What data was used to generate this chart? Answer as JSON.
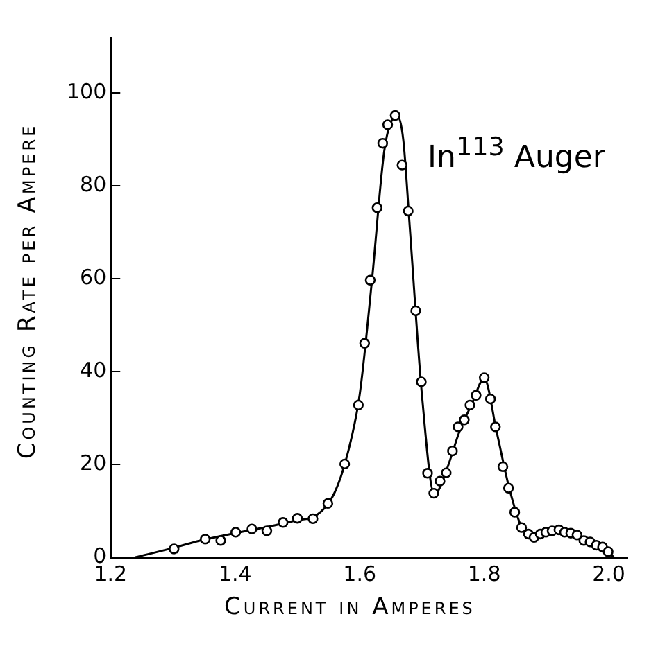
{
  "chart_data": {
    "type": "scatter",
    "xlabel": "Current in Amperes",
    "ylabel": "Counting Rate per Ampere",
    "annotations": [
      "In$^{113}$ Auger"
    ],
    "xlim": [
      1.2,
      2.03
    ],
    "ylim": [
      0,
      112
    ],
    "xticks": [
      {
        "value": 1.2,
        "label": "1.2"
      },
      {
        "value": 1.4,
        "label": "1.4"
      },
      {
        "value": 1.6,
        "label": "1.6"
      },
      {
        "value": 1.8,
        "label": "1.8"
      },
      {
        "value": 2,
        "label": "2.0"
      }
    ],
    "yticks": [
      0,
      20,
      40,
      60,
      80,
      100
    ],
    "grid": false,
    "legend": false,
    "series": [
      {
        "marker": "circle",
        "color": "#000000",
        "x": [
          1.302,
          1.352,
          1.377,
          1.401,
          1.427,
          1.451,
          1.477,
          1.5,
          1.525,
          1.549,
          1.576,
          1.598,
          1.608,
          1.617,
          1.628,
          1.637,
          1.645,
          1.657,
          1.668,
          1.678,
          1.69,
          1.699,
          1.709,
          1.719,
          1.729,
          1.739,
          1.749,
          1.758,
          1.768,
          1.777,
          1.787,
          1.8,
          1.81,
          1.818,
          1.83,
          1.839,
          1.849,
          1.86,
          1.871,
          1.88,
          1.89,
          1.899,
          1.909,
          1.92,
          1.929,
          1.939,
          1.949,
          1.96,
          1.97,
          1.98,
          1.99,
          1.999
        ],
        "values": [
          1.8,
          3.9,
          3.6,
          5.4,
          6.1,
          5.7,
          7.5,
          8.4,
          8.3,
          11.6,
          20.1,
          32.8,
          46.1,
          59.7,
          75.3,
          89.2,
          93.2,
          95.2,
          84.5,
          74.6,
          53.1,
          37.8,
          18.1,
          13.8,
          16.4,
          18.2,
          22.9,
          28.1,
          29.6,
          32.8,
          34.9,
          38.7,
          34.1,
          28.1,
          19.5,
          14.9,
          9.7,
          6.4,
          5.0,
          4.3,
          5.0,
          5.4,
          5.7,
          5.9,
          5.4,
          5.2,
          4.8,
          3.6,
          3.3,
          2.6,
          2.2,
          1.2
        ]
      },
      {
        "type": "line",
        "color": "#000000",
        "x": [
          1.24,
          1.3,
          1.35,
          1.4,
          1.45,
          1.5,
          1.53,
          1.56,
          1.58,
          1.6,
          1.62,
          1.64,
          1.66,
          1.67,
          1.68,
          1.7,
          1.72,
          1.74,
          1.76,
          1.78,
          1.8,
          1.82,
          1.84,
          1.86,
          1.88,
          1.9,
          1.92,
          1.95,
          1.98,
          2.0,
          2.008
        ],
        "values": [
          0,
          2,
          3.8,
          5.2,
          6.5,
          8,
          9,
          14,
          22,
          35,
          60,
          88,
          95,
          90,
          72,
          35,
          13.5,
          19,
          27,
          33,
          38.5,
          27,
          15,
          6.5,
          4.3,
          5.3,
          6,
          4.8,
          2.7,
          1,
          0
        ]
      }
    ]
  }
}
